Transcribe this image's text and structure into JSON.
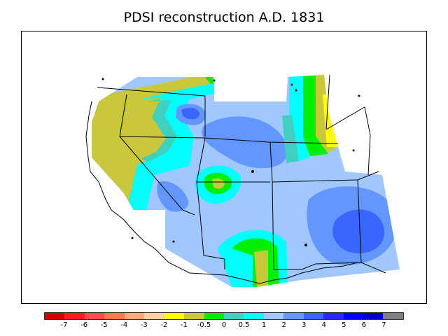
{
  "title": "PDSI reconstruction A.D. 1831",
  "legend": {
    "colors": [
      "#d40000",
      "#ff1c1c",
      "#ff4b4b",
      "#ff7a4a",
      "#ffa878",
      "#ffd0a0",
      "#ffff00",
      "#c8c83a",
      "#00ee00",
      "#40d0c0",
      "#00ffff",
      "#a0c8ff",
      "#6496ff",
      "#3c64ff",
      "#2828ff",
      "#0000ff",
      "#0000c8",
      "#808080"
    ],
    "labels": [
      "-7",
      "-6",
      "-5",
      "-4",
      "-3",
      "-2",
      "-1",
      "-0.5",
      "0",
      "0.5",
      "1",
      "2",
      "3",
      "4",
      "5",
      "6",
      "7"
    ]
  },
  "chart_data": {
    "type": "heatmap",
    "title": "PDSI reconstruction A.D. 1831",
    "variable": "PDSI",
    "year": 1831,
    "color_scale_breaks": [
      -7,
      -6,
      -5,
      -4,
      -3,
      -2,
      -1,
      -0.5,
      0,
      0.5,
      1,
      2,
      3,
      4,
      5,
      6,
      7
    ],
    "dominant_range": [
      1,
      2
    ]
  }
}
